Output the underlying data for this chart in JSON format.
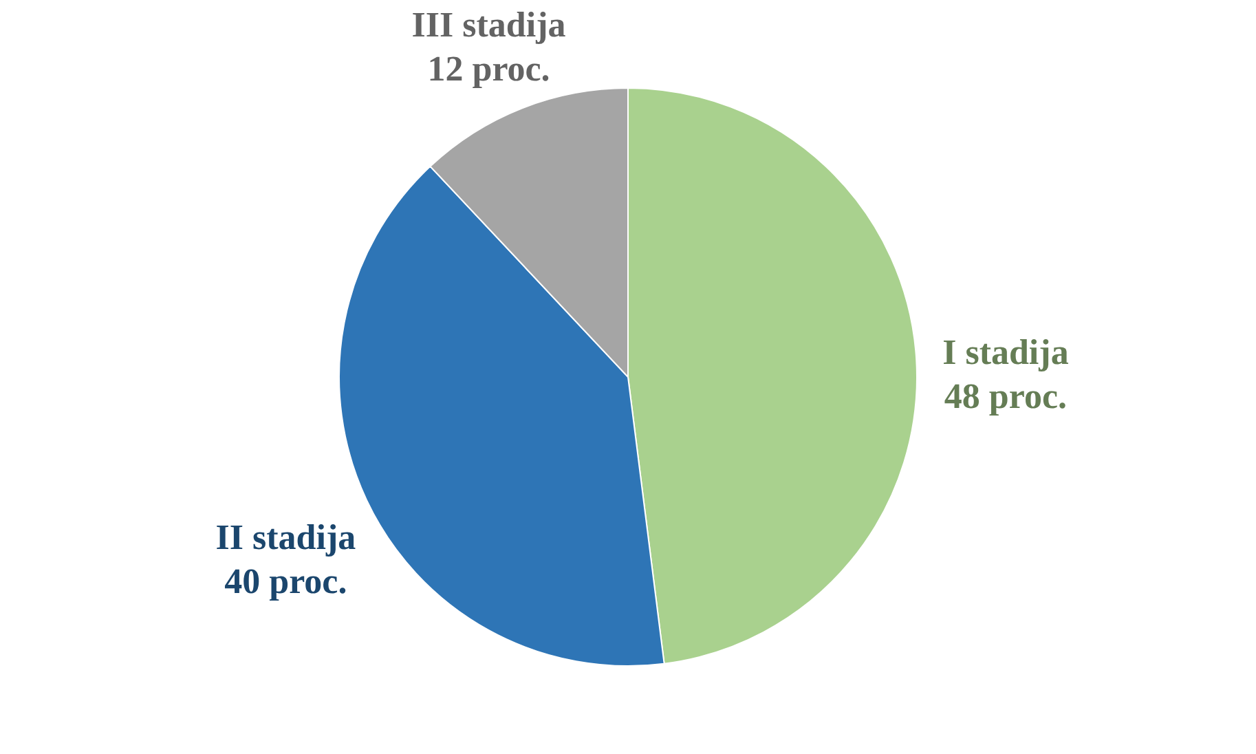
{
  "chart_data": {
    "type": "pie",
    "categories": [
      "I stadija",
      "II stadija",
      "III stadija"
    ],
    "values": [
      48,
      40,
      12
    ],
    "value_labels": [
      "48 proc.",
      "40 proc.",
      "12 proc."
    ],
    "colors": [
      "#a9d18e",
      "#2e75b6",
      "#a5a5a5"
    ],
    "legend": false
  }
}
